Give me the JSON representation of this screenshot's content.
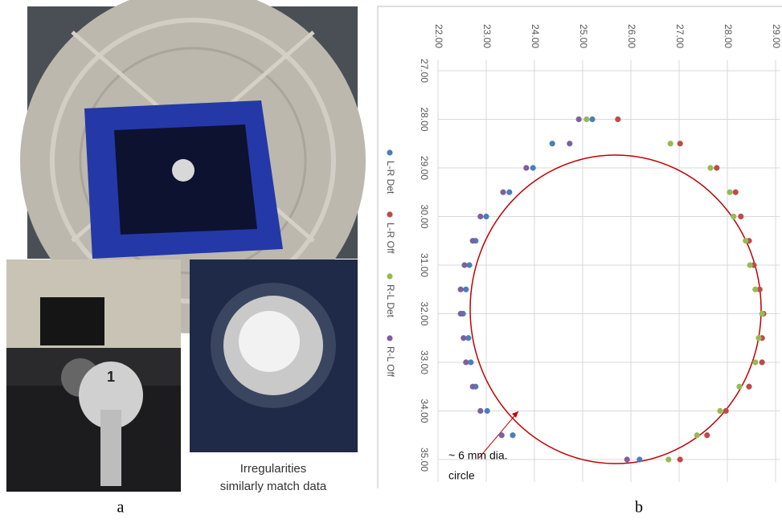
{
  "figure": {
    "panel_labels": [
      "a",
      "b"
    ],
    "caption": [
      "Irregularities",
      "similarly match data"
    ]
  },
  "chart_data": {
    "type": "scatter",
    "xlim": [
      22,
      29
    ],
    "ylim": [
      27,
      35
    ],
    "xticks": [
      {
        "value": 22,
        "label": "22.00"
      },
      {
        "value": 23,
        "label": "23.00"
      },
      {
        "value": 24,
        "label": "24.00"
      },
      {
        "value": 25,
        "label": "25.00"
      },
      {
        "value": 26,
        "label": "26.00"
      },
      {
        "value": 27,
        "label": "27.00"
      },
      {
        "value": 28,
        "label": "28.00"
      },
      {
        "value": 29,
        "label": "29.00"
      }
    ],
    "yticks": [
      {
        "value": 27,
        "label": "27.00"
      },
      {
        "value": 28,
        "label": "28.00"
      },
      {
        "value": 29,
        "label": "29.00"
      },
      {
        "value": 30,
        "label": "30.00"
      },
      {
        "value": 31,
        "label": "31.00"
      },
      {
        "value": 32,
        "label": "32.00"
      },
      {
        "value": 33,
        "label": "33.00"
      },
      {
        "value": 34,
        "label": "34.00"
      },
      {
        "value": 35,
        "label": "35.00"
      }
    ],
    "grid": true,
    "annotation": [
      "~ 6 mm dia.",
      "circle"
    ],
    "series": [
      {
        "name": "L-R Det",
        "color": "#4a7ebb",
        "x": [
          25.2,
          24.37,
          23.97,
          23.48,
          23.0,
          22.78,
          22.65,
          22.58,
          22.52,
          22.63,
          22.68,
          22.78,
          23.02,
          23.55,
          26.18
        ],
        "values": [
          28,
          28.5,
          29,
          29.5,
          30,
          30.5,
          31,
          31.5,
          32,
          32.5,
          33,
          33.5,
          34,
          34.5,
          35
        ]
      },
      {
        "name": "L-R Off",
        "color": "#be4b48",
        "x": [
          25.73,
          27.02,
          27.78,
          28.17,
          28.28,
          28.45,
          28.55,
          28.67,
          28.75,
          28.72,
          28.72,
          28.45,
          27.97,
          27.58,
          27.02
        ],
        "values": [
          28,
          28.5,
          29,
          29.5,
          30,
          30.5,
          31,
          31.5,
          32,
          32.5,
          33,
          33.5,
          34,
          34.5,
          35
        ]
      },
      {
        "name": "R-L Det",
        "color": "#98b954",
        "x": [
          25.08,
          26.82,
          27.65,
          28.05,
          28.13,
          28.38,
          28.47,
          28.58,
          28.72,
          28.65,
          28.58,
          28.25,
          27.85,
          27.37,
          26.78
        ],
        "values": [
          28,
          28.5,
          29,
          29.5,
          30,
          30.5,
          31,
          31.5,
          32,
          32.5,
          33,
          33.5,
          34,
          34.5,
          35
        ]
      },
      {
        "name": "R-L Off",
        "color": "#7d60a0",
        "x": [
          24.92,
          24.73,
          23.83,
          23.35,
          22.88,
          22.72,
          22.55,
          22.47,
          22.47,
          22.53,
          22.58,
          22.72,
          22.88,
          23.32,
          25.92
        ],
        "values": [
          28,
          28.5,
          29,
          29.5,
          30,
          30.5,
          31,
          31.5,
          32,
          32.5,
          33,
          33.5,
          34,
          34.5,
          35
        ]
      }
    ]
  }
}
